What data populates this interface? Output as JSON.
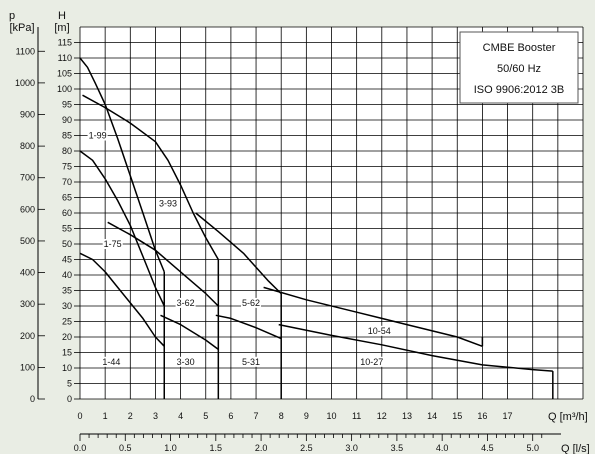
{
  "chart_data": {
    "type": "line",
    "info_box": [
      "CMBE Booster",
      "50/60 Hz",
      "ISO 9906:2012 3B"
    ],
    "axes": {
      "p_title": [
        "p",
        "[kPa]"
      ],
      "h_title": [
        "H",
        "[m]"
      ],
      "q_m3h_title": "Q [m³/h]",
      "q_ls_title": "Q [l/s]",
      "q_m3h_range": [
        0,
        20
      ],
      "h_range": [
        0,
        120
      ],
      "grid": true,
      "q_m3h_ticks": [
        0,
        1,
        2,
        3,
        4,
        5,
        6,
        7,
        8,
        9,
        10,
        11,
        12,
        13,
        14,
        15,
        16,
        17
      ],
      "h_ticks": [
        0,
        5,
        10,
        15,
        20,
        25,
        30,
        35,
        40,
        45,
        50,
        55,
        60,
        65,
        70,
        75,
        80,
        85,
        90,
        95,
        100,
        105,
        110,
        115
      ],
      "p_ticks": [
        0,
        100,
        200,
        300,
        400,
        500,
        600,
        700,
        800,
        900,
        1000,
        1100
      ],
      "q_ls_ticks": [
        "0.0",
        "0.5",
        "1.0",
        "1.5",
        "2.0",
        "2.5",
        "3.0",
        "3.5",
        "4.0",
        "4.5",
        "5.0"
      ]
    },
    "series": [
      {
        "name": "1-99",
        "points": [
          [
            0,
            110
          ],
          [
            0.3,
            107
          ],
          [
            0.6,
            102
          ],
          [
            1,
            95
          ],
          [
            1.5,
            84
          ],
          [
            2,
            72
          ],
          [
            2.5,
            60
          ],
          [
            3,
            48
          ],
          [
            3.35,
            41
          ]
        ]
      },
      {
        "name": "1-75",
        "points": [
          [
            0,
            80
          ],
          [
            0.5,
            77
          ],
          [
            1,
            71
          ],
          [
            1.5,
            64
          ],
          [
            2,
            56
          ],
          [
            2.5,
            46
          ],
          [
            3,
            36
          ],
          [
            3.35,
            30
          ]
        ]
      },
      {
        "name": "1-44",
        "points": [
          [
            0,
            47
          ],
          [
            0.5,
            45
          ],
          [
            1,
            41
          ],
          [
            1.5,
            36
          ],
          [
            2,
            31
          ],
          [
            2.5,
            26
          ],
          [
            3,
            20
          ],
          [
            3.35,
            17
          ]
        ]
      },
      {
        "name": "3-93",
        "points": [
          [
            0.1,
            98
          ],
          [
            1,
            94
          ],
          [
            2,
            89
          ],
          [
            3,
            83
          ],
          [
            3.5,
            77
          ],
          [
            4,
            69
          ],
          [
            4.5,
            60
          ],
          [
            5,
            52
          ],
          [
            5.5,
            45
          ]
        ]
      },
      {
        "name": "3-62",
        "points": [
          [
            1.1,
            57
          ],
          [
            2,
            53
          ],
          [
            3,
            48
          ],
          [
            4,
            41
          ],
          [
            5,
            34
          ],
          [
            5.5,
            30
          ]
        ]
      },
      {
        "name": "3-30",
        "points": [
          [
            3.2,
            27
          ],
          [
            4,
            24
          ],
          [
            5,
            19
          ],
          [
            5.5,
            16
          ]
        ]
      },
      {
        "name": "5-62",
        "points": [
          [
            4.6,
            60
          ],
          [
            5.5,
            54
          ],
          [
            6.5,
            47
          ],
          [
            7.5,
            38
          ],
          [
            8,
            34
          ]
        ]
      },
      {
        "name": "5-31",
        "points": [
          [
            5.4,
            27
          ],
          [
            6,
            26
          ],
          [
            7,
            23
          ],
          [
            8,
            19.5
          ]
        ]
      },
      {
        "name": "10-54",
        "points": [
          [
            7.3,
            36
          ],
          [
            9,
            32
          ],
          [
            11,
            28
          ],
          [
            13,
            24
          ],
          [
            15,
            20
          ],
          [
            16,
            17
          ]
        ]
      },
      {
        "name": "10-27",
        "points": [
          [
            7.9,
            24
          ],
          [
            10,
            20.5
          ],
          [
            12,
            17.5
          ],
          [
            14,
            14
          ],
          [
            16,
            11
          ],
          [
            18,
            9.5
          ],
          [
            18.8,
            9
          ]
        ]
      }
    ],
    "verticals": [
      {
        "q": 3.35,
        "from": 0,
        "to": 41
      },
      {
        "q": 5.5,
        "from": 0,
        "to": 45
      },
      {
        "q": 8,
        "from": 0,
        "to": 34
      },
      {
        "q": 16,
        "from": 17,
        "to": 20
      },
      {
        "q": 18.8,
        "from": 0,
        "to": 9
      }
    ],
    "curve_labels": [
      {
        "text": "1-99",
        "q": 0.7,
        "h": 85
      },
      {
        "text": "1-75",
        "q": 1.3,
        "h": 50
      },
      {
        "text": "1-44",
        "q": 1.25,
        "h": 12
      },
      {
        "text": "3-93",
        "q": 3.5,
        "h": 63
      },
      {
        "text": "3-62",
        "q": 4.2,
        "h": 31
      },
      {
        "text": "3-30",
        "q": 4.2,
        "h": 12
      },
      {
        "text": "5-62",
        "q": 6.8,
        "h": 31
      },
      {
        "text": "5-31",
        "q": 6.8,
        "h": 12
      },
      {
        "text": "10-54",
        "q": 11.9,
        "h": 22
      },
      {
        "text": "10-27",
        "q": 11.6,
        "h": 12
      }
    ]
  }
}
